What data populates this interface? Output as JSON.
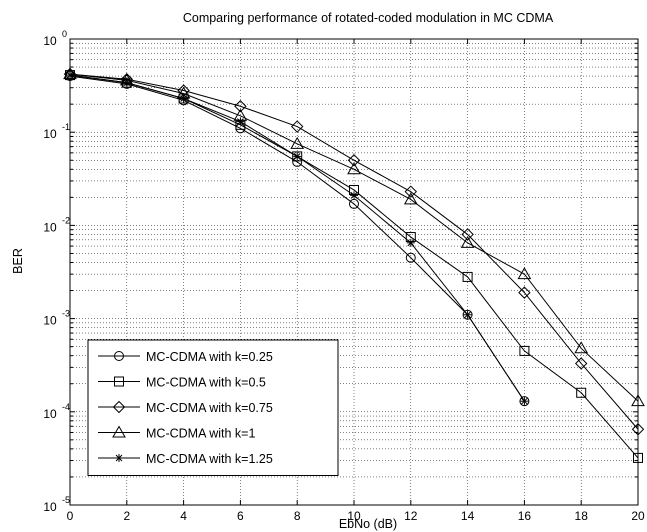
{
  "chart_data": {
    "type": "line",
    "title": "Comparing performance of rotated-coded modulation in MC CDMA",
    "xlabel": "EbNo (dB)",
    "ylabel": "BER",
    "xlim": [
      0,
      20
    ],
    "ylim": [
      1e-05,
      1
    ],
    "yscale": "log",
    "grid": true,
    "legend_position": "bottom-left",
    "xticks": [
      0,
      2,
      4,
      6,
      8,
      10,
      12,
      14,
      16,
      18,
      20
    ],
    "yticks": [
      {
        "base": "10",
        "exp": "0",
        "value": 1
      },
      {
        "base": "10",
        "exp": "-1",
        "value": 0.1
      },
      {
        "base": "10",
        "exp": "-2",
        "value": 0.01
      },
      {
        "base": "10",
        "exp": "-3",
        "value": 0.001
      },
      {
        "base": "10",
        "exp": "-4",
        "value": 0.0001
      },
      {
        "base": "10",
        "exp": "-5",
        "value": 1e-05
      }
    ],
    "series": [
      {
        "name": "MC-CDMA with k=0.25",
        "marker": "circle",
        "x": [
          0,
          2,
          4,
          6,
          8,
          10,
          12,
          14,
          16
        ],
        "y": [
          0.4,
          0.33,
          0.22,
          0.11,
          0.048,
          0.017,
          0.0045,
          0.0011,
          0.00013
        ]
      },
      {
        "name": "MC-CDMA with k=0.5",
        "marker": "square",
        "x": [
          0,
          2,
          4,
          6,
          8,
          10,
          12,
          14,
          16,
          18,
          20
        ],
        "y": [
          0.41,
          0.34,
          0.23,
          0.12,
          0.055,
          0.024,
          0.0075,
          0.0028,
          0.00045,
          0.00016,
          3.2e-05
        ]
      },
      {
        "name": "MC-CDMA with k=0.75",
        "marker": "diamond",
        "x": [
          0,
          2,
          4,
          6,
          8,
          10,
          12,
          14,
          16,
          18,
          20
        ],
        "y": [
          0.42,
          0.37,
          0.28,
          0.19,
          0.115,
          0.05,
          0.023,
          0.008,
          0.0019,
          0.00033,
          6.5e-05
        ]
      },
      {
        "name": "MC-CDMA with k=1",
        "marker": "triangle",
        "x": [
          0,
          2,
          4,
          6,
          8,
          10,
          12,
          14,
          16,
          18,
          20
        ],
        "y": [
          0.42,
          0.36,
          0.26,
          0.15,
          0.075,
          0.04,
          0.019,
          0.0065,
          0.003,
          0.00048,
          0.00013
        ]
      },
      {
        "name": "MC-CDMA with k=1.25",
        "marker": "star",
        "x": [
          0,
          2,
          4,
          6,
          8,
          10,
          12,
          14,
          16
        ],
        "y": [
          0.41,
          0.34,
          0.23,
          0.13,
          0.055,
          0.021,
          0.0065,
          0.0011,
          0.00013
        ]
      }
    ]
  }
}
